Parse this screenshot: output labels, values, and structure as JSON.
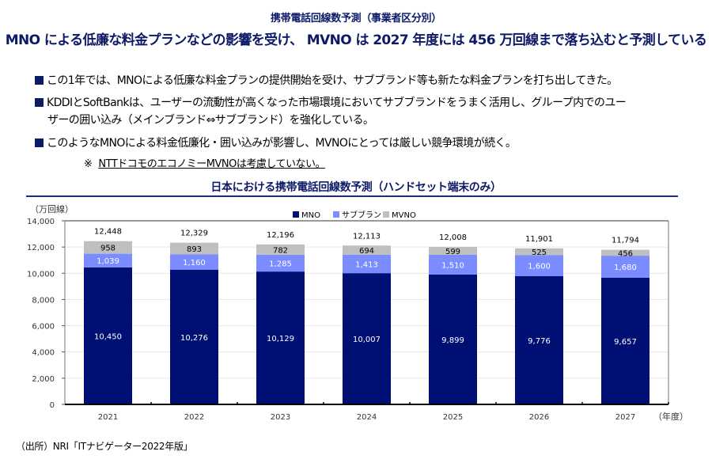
{
  "header": {
    "supertitle": "携帯電話回線数予測（事業者区分別）",
    "title": "MNO による低廉な料金プランなどの影響を受け、 MVNO は 2027 年度には 456 万回線まで落ち込むと予測している"
  },
  "bullets": [
    {
      "lines": [
        "この1年では、MNOによる低廉な料金プランの提供開始を受け、サブブランド等も新たな料金プランを打ち出してきた。"
      ]
    },
    {
      "lines": [
        "KDDIとSoftBankは、ユーザーの流動性が高くなった市場環境においてサブブランドをうまく活用し、グループ内でのユー",
        "ザーの囲い込み（メインブランド⇔サブブランド）を強化している。"
      ]
    },
    {
      "lines": [
        "このようなMNOによる料金低廉化・囲い込みが影響し、MVNOにとっては厳しい競争環境が続く。"
      ]
    }
  ],
  "note": {
    "mark": "※",
    "text": "NTTドコモのエコノミーMVNOは考慮していない。"
  },
  "source": "（出所）NRI「ITナビゲーター2022年版」",
  "colors": {
    "mno": "#000f73",
    "sub": "#7a8cff",
    "mvno": "#bfbfbf",
    "title": "#0d1a66"
  },
  "chart_data": {
    "type": "bar",
    "stacked": true,
    "title": "日本における携帯電話回線数予測（ハンドセット端末のみ）",
    "ylabel": "（万回線）",
    "xlabel": "（年度）",
    "categories": [
      "2021",
      "2022",
      "2023",
      "2024",
      "2025",
      "2026",
      "2027"
    ],
    "series": [
      {
        "name": "MNO",
        "values": [
          10450,
          10276,
          10129,
          10007,
          9899,
          9776,
          9657
        ]
      },
      {
        "name": "サブブランド",
        "values": [
          1039,
          1160,
          1285,
          1413,
          1510,
          1600,
          1680
        ]
      },
      {
        "name": "MVNO",
        "values": [
          958,
          893,
          782,
          694,
          599,
          525,
          456
        ]
      }
    ],
    "totals": [
      12448,
      12329,
      12196,
      12113,
      12008,
      11901,
      11794
    ],
    "ylim": [
      0,
      14000
    ],
    "yticks": [
      0,
      2000,
      4000,
      6000,
      8000,
      10000,
      12000,
      14000
    ],
    "ytick_labels": [
      "0",
      "2,000",
      "4,000",
      "6,000",
      "8,000",
      "10,000",
      "12,000",
      "14,000"
    ],
    "grid": true,
    "legend": "top-center"
  }
}
